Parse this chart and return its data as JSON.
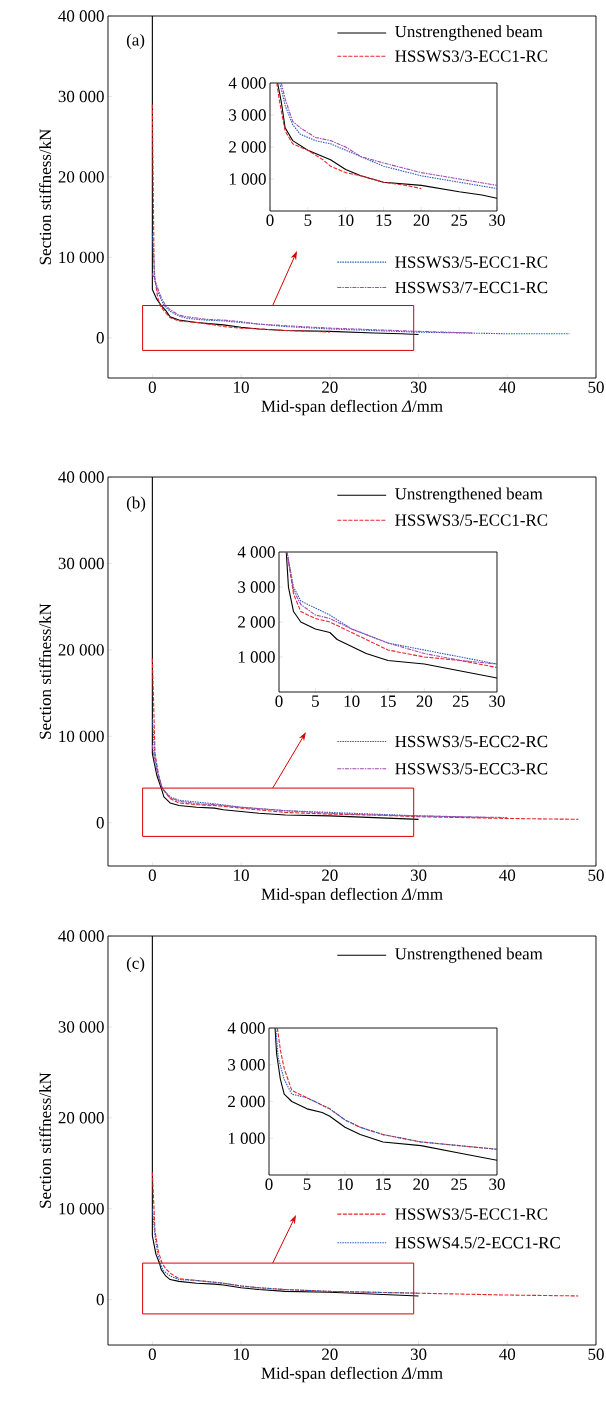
{
  "chart_data": [
    {
      "type": "line",
      "xlabel": "Mid-span deflection *Δ*/mm",
      "ylabel": "Section stiffness/kN",
      "annotations": [
        "(a)"
      ],
      "legend": "right",
      "xlim": [
        -5,
        50
      ],
      "ylim": [
        -5000,
        40000
      ],
      "xticks": [
        0,
        10,
        20,
        30,
        40,
        50
      ],
      "yticks": [
        0,
        {
          "value": 10000,
          "label": "10 000"
        },
        {
          "value": 20000,
          "label": "20 000"
        },
        {
          "value": 30000,
          "label": "30 000"
        },
        {
          "value": 40000,
          "label": "40 000"
        }
      ],
      "series": [
        {
          "name": "Unstrengthened beam",
          "color": "#000000",
          "line_style": "solid",
          "x": [
            0,
            0,
            0.5,
            1,
            1.5,
            2,
            3,
            5,
            7,
            8,
            10,
            12,
            15,
            20,
            25,
            28,
            30
          ],
          "values": [
            40000,
            6000,
            4800,
            4000,
            3400,
            2600,
            2200,
            1900,
            1700,
            1600,
            1300,
            1100,
            900,
            800,
            600,
            500,
            400
          ]
        },
        {
          "name": "HSSWS3/3-ECC1-RC",
          "color": "#e8262a",
          "line_style": "dashed",
          "x": [
            0,
            0.2,
            0.6,
            0.9,
            1.2,
            2,
            3,
            5,
            7,
            8,
            10,
            12,
            15,
            18,
            20
          ],
          "values": [
            29000,
            8000,
            5000,
            4000,
            3500,
            2500,
            2100,
            1900,
            1600,
            1400,
            1200,
            1100,
            900,
            800,
            700
          ]
        },
        {
          "name": "HSSWS3/5-ECC1-RC",
          "color": "#2a5cb8",
          "line_style": "dotted",
          "x": [
            0,
            0.3,
            0.7,
            1.3,
            2,
            3,
            4,
            6,
            8,
            10,
            12,
            15,
            20,
            25,
            30,
            35,
            40,
            47
          ],
          "values": [
            13000,
            7000,
            5500,
            4000,
            3300,
            2700,
            2400,
            2200,
            2100,
            1900,
            1700,
            1400,
            1100,
            900,
            700,
            600,
            500,
            500
          ]
        },
        {
          "name": "HSSWS3/7-ECC1-RC",
          "color": "#a04cb0",
          "line_style": "dashdot",
          "x": [
            0,
            0.5,
            1,
            1.5,
            2,
            3,
            4,
            6,
            8,
            10,
            12,
            15,
            20,
            25,
            30,
            33,
            36
          ],
          "values": [
            8000,
            6500,
            5000,
            4000,
            3500,
            2800,
            2600,
            2300,
            2200,
            2000,
            1700,
            1500,
            1200,
            1000,
            800,
            700,
            600
          ]
        }
      ]
    },
    {
      "type": "line",
      "xlim": [
        0,
        30
      ],
      "ylim": [
        0,
        4000
      ],
      "xticks": [
        0,
        5,
        10,
        15,
        20,
        25,
        30
      ],
      "yticks": [
        {
          "value": 1000,
          "label": "1 000"
        },
        {
          "value": 2000,
          "label": "2 000"
        },
        {
          "value": 3000,
          "label": "3 000"
        },
        {
          "value": 4000,
          "label": "4 000"
        }
      ],
      "series": [
        {
          "color": "#000000",
          "line_style": "solid",
          "x": [
            1,
            1.5,
            2,
            3,
            5,
            7,
            8,
            10,
            12,
            15,
            20,
            25,
            28,
            30
          ],
          "values": [
            4000,
            3400,
            2600,
            2200,
            1900,
            1700,
            1600,
            1300,
            1100,
            900,
            800,
            600,
            500,
            400
          ]
        },
        {
          "color": "#e8262a",
          "line_style": "dashed",
          "x": [
            0.9,
            1.2,
            2,
            3,
            5,
            7,
            8,
            10,
            12,
            15,
            18,
            20
          ],
          "values": [
            4000,
            3500,
            2500,
            2100,
            1900,
            1600,
            1400,
            1200,
            1100,
            900,
            800,
            700
          ]
        },
        {
          "color": "#2a5cb8",
          "line_style": "dotted",
          "x": [
            1.3,
            2,
            3,
            4,
            6,
            8,
            10,
            12,
            15,
            20,
            25,
            30
          ],
          "values": [
            4000,
            3300,
            2700,
            2400,
            2200,
            2100,
            1900,
            1700,
            1400,
            1100,
            900,
            700
          ]
        },
        {
          "color": "#a04cb0",
          "line_style": "dashdot",
          "x": [
            1.5,
            2,
            3,
            4,
            6,
            8,
            10,
            12,
            15,
            20,
            25,
            30
          ],
          "values": [
            4000,
            3500,
            2800,
            2600,
            2300,
            2200,
            2000,
            1700,
            1500,
            1200,
            1000,
            800
          ]
        }
      ]
    },
    {
      "type": "line",
      "xlabel": "Mid-span deflection *Δ*/mm",
      "ylabel": "Section stiffness/kN",
      "annotations": [
        "(b)"
      ],
      "legend": "right",
      "xlim": [
        -5,
        50
      ],
      "ylim": [
        -5000,
        40000
      ],
      "xticks": [
        0,
        10,
        20,
        30,
        40,
        50
      ],
      "yticks": [
        0,
        {
          "value": 10000,
          "label": "10 000"
        },
        {
          "value": 20000,
          "label": "20 000"
        },
        {
          "value": 30000,
          "label": "30 000"
        },
        {
          "value": 40000,
          "label": "40 000"
        }
      ],
      "series": [
        {
          "name": "Unstrengthened beam",
          "color": "#000000",
          "line_style": "solid",
          "x": [
            0,
            0,
            0.5,
            1,
            1.3,
            2,
            3,
            5,
            7,
            8,
            10,
            12,
            15,
            20,
            25,
            30
          ],
          "values": [
            40000,
            8000,
            5500,
            4000,
            3000,
            2300,
            2000,
            1800,
            1700,
            1500,
            1300,
            1100,
            900,
            800,
            600,
            400
          ]
        },
        {
          "name": "HSSWS3/5-ECC1-RC",
          "color": "#e8262a",
          "line_style": "dashed",
          "x": [
            0,
            0.3,
            0.7,
            1.1,
            2,
            3,
            5,
            7,
            10,
            15,
            20,
            25,
            30,
            35,
            40,
            48
          ],
          "values": [
            19000,
            8000,
            5500,
            4000,
            2800,
            2300,
            2100,
            2000,
            1700,
            1200,
            1000,
            900,
            700,
            600,
            500,
            400
          ]
        },
        {
          "name": "HSSWS3/5-ECC2-RC",
          "color": "#2a5cb8",
          "line_style": "dotted",
          "x": [
            0,
            0.3,
            0.7,
            1.1,
            2,
            3,
            5,
            7,
            10,
            15,
            20,
            25,
            30,
            34,
            38
          ],
          "values": [
            12000,
            7500,
            5500,
            4000,
            3000,
            2600,
            2400,
            2200,
            1800,
            1400,
            1200,
            1000,
            800,
            700,
            600
          ]
        },
        {
          "name": "HSSWS3/5-ECC3-RC",
          "color": "#a04cb0",
          "line_style": "dashdot",
          "x": [
            0,
            0.3,
            0.7,
            1.1,
            2,
            3,
            5,
            7,
            10,
            15,
            20,
            25,
            30,
            35,
            40
          ],
          "values": [
            9000,
            7000,
            5300,
            4000,
            2900,
            2500,
            2200,
            2100,
            1800,
            1400,
            1100,
            900,
            800,
            700,
            600
          ]
        }
      ]
    },
    {
      "type": "line",
      "xlim": [
        0,
        30
      ],
      "ylim": [
        0,
        4000
      ],
      "xticks": [
        0,
        5,
        10,
        15,
        20,
        25,
        30
      ],
      "yticks": [
        {
          "value": 1000,
          "label": "1 000"
        },
        {
          "value": 2000,
          "label": "2 000"
        },
        {
          "value": 3000,
          "label": "3 000"
        },
        {
          "value": 4000,
          "label": "4 000"
        }
      ],
      "series": [
        {
          "color": "#000000",
          "line_style": "solid",
          "x": [
            1,
            1.3,
            2,
            3,
            5,
            7,
            8,
            10,
            12,
            15,
            20,
            25,
            30
          ],
          "values": [
            4000,
            3000,
            2300,
            2000,
            1800,
            1700,
            1500,
            1300,
            1100,
            900,
            800,
            600,
            400
          ]
        },
        {
          "color": "#e8262a",
          "line_style": "dashed",
          "x": [
            1.1,
            2,
            3,
            5,
            7,
            10,
            15,
            20,
            25,
            30
          ],
          "values": [
            4000,
            2800,
            2300,
            2100,
            2000,
            1700,
            1200,
            1000,
            900,
            700
          ]
        },
        {
          "color": "#2a5cb8",
          "line_style": "dotted",
          "x": [
            1.1,
            2,
            3,
            5,
            7,
            10,
            15,
            20,
            25,
            30
          ],
          "values": [
            4000,
            3000,
            2600,
            2400,
            2200,
            1800,
            1400,
            1200,
            1000,
            800
          ]
        },
        {
          "color": "#a04cb0",
          "line_style": "dashdot",
          "x": [
            1.1,
            2,
            3,
            5,
            7,
            10,
            15,
            20,
            25,
            30
          ],
          "values": [
            4000,
            2900,
            2500,
            2200,
            2100,
            1800,
            1400,
            1100,
            900,
            800
          ]
        }
      ]
    },
    {
      "type": "line",
      "xlabel": "Mid-span deflection *Δ*/mm",
      "ylabel": "Section stiffness/kN",
      "annotations": [
        "(c)"
      ],
      "legend": "right",
      "xlim": [
        -5,
        50
      ],
      "ylim": [
        -5000,
        40000
      ],
      "xticks": [
        0,
        10,
        20,
        30,
        40,
        50
      ],
      "yticks": [
        0,
        {
          "value": 10000,
          "label": "10 000"
        },
        {
          "value": 20000,
          "label": "20 000"
        },
        {
          "value": 30000,
          "label": "30 000"
        },
        {
          "value": 40000,
          "label": "40 000"
        }
      ],
      "series": [
        {
          "name": "Unstrengthened beam",
          "color": "#000000",
          "line_style": "solid",
          "x": [
            0,
            0,
            0.4,
            0.8,
            1,
            1.5,
            2,
            3,
            5,
            7,
            8,
            10,
            12,
            15,
            20,
            25,
            30
          ],
          "values": [
            40000,
            7000,
            5000,
            4000,
            3300,
            2600,
            2200,
            2000,
            1800,
            1700,
            1600,
            1300,
            1100,
            900,
            800,
            600,
            400
          ]
        },
        {
          "name": "HSSWS3/5-ECC1-RC",
          "color": "#e8262a",
          "line_style": "dashed",
          "x": [
            0,
            0.3,
            0.7,
            1.1,
            1.5,
            2,
            3,
            5,
            7,
            8,
            10,
            12,
            15,
            20,
            25,
            30,
            35,
            40,
            48
          ],
          "values": [
            14000,
            7500,
            5200,
            4000,
            3400,
            2900,
            2300,
            2100,
            1900,
            1800,
            1500,
            1300,
            1100,
            900,
            800,
            700,
            600,
            500,
            400
          ]
        },
        {
          "name": "HSSWS4.5/2-ECC1-RC",
          "color": "#2a5cb8",
          "line_style": "dotted",
          "x": [
            0,
            0.3,
            0.6,
            0.9,
            1.2,
            2,
            3,
            5,
            7,
            8,
            10,
            12,
            15,
            20,
            25,
            30
          ],
          "values": [
            10000,
            7000,
            5000,
            4000,
            3200,
            2600,
            2200,
            2100,
            1900,
            1800,
            1500,
            1300,
            1100,
            900,
            800,
            700
          ]
        }
      ]
    },
    {
      "type": "line",
      "xlim": [
        0,
        30
      ],
      "ylim": [
        0,
        4000
      ],
      "xticks": [
        0,
        5,
        10,
        15,
        20,
        25,
        30
      ],
      "yticks": [
        {
          "value": 1000,
          "label": "1 000"
        },
        {
          "value": 2000,
          "label": "2 000"
        },
        {
          "value": 3000,
          "label": "3 000"
        },
        {
          "value": 4000,
          "label": "4 000"
        }
      ],
      "series": [
        {
          "color": "#000000",
          "line_style": "solid",
          "x": [
            0.8,
            1,
            1.5,
            2,
            3,
            5,
            7,
            8,
            10,
            12,
            15,
            20,
            25,
            30
          ],
          "values": [
            4000,
            3300,
            2600,
            2200,
            2000,
            1800,
            1700,
            1600,
            1300,
            1100,
            900,
            800,
            600,
            400
          ]
        },
        {
          "color": "#e8262a",
          "line_style": "dashed",
          "x": [
            1.1,
            1.5,
            2,
            3,
            5,
            7,
            8,
            10,
            12,
            15,
            20,
            25,
            30
          ],
          "values": [
            4000,
            3400,
            2900,
            2300,
            2100,
            1900,
            1800,
            1500,
            1300,
            1100,
            900,
            800,
            700
          ]
        },
        {
          "color": "#2a5cb8",
          "line_style": "dotted",
          "x": [
            0.9,
            1.2,
            2,
            3,
            5,
            7,
            8,
            10,
            12,
            15,
            20,
            25,
            30
          ],
          "values": [
            4000,
            3200,
            2600,
            2200,
            2100,
            1900,
            1800,
            1500,
            1300,
            1100,
            900,
            800,
            700
          ]
        }
      ]
    }
  ]
}
